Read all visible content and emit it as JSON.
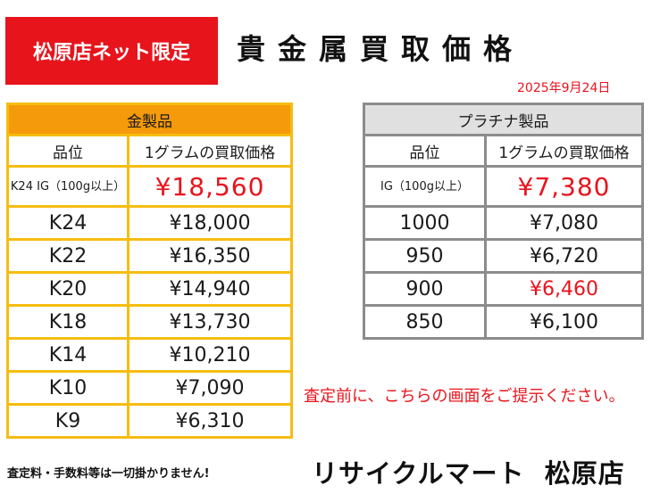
{
  "header": {
    "badge": "松原店ネット限定",
    "title": "貴金属買取価格",
    "date": "2025年9月24日"
  },
  "gold": {
    "caption": "金製品",
    "col_grade": "品位",
    "col_price": "1グラムの買取価格",
    "rows": [
      {
        "grade": "K24 IG（100g以上）",
        "price": "¥18,560"
      },
      {
        "grade": "K24",
        "price": "¥18,000"
      },
      {
        "grade": "K22",
        "price": "¥16,350"
      },
      {
        "grade": "K20",
        "price": "¥14,940"
      },
      {
        "grade": "K18",
        "price": "¥13,730"
      },
      {
        "grade": "K14",
        "price": "¥10,210"
      },
      {
        "grade": "K10",
        "price": "¥7,090"
      },
      {
        "grade": "K9",
        "price": "¥6,310"
      }
    ]
  },
  "platinum": {
    "caption": "プラチナ製品",
    "col_grade": "品位",
    "col_price": "1グラムの買取価格",
    "rows": [
      {
        "grade": "IG（100g以上）",
        "price": "¥7,380"
      },
      {
        "grade": "1000",
        "price": "¥7,080"
      },
      {
        "grade": "950",
        "price": "¥6,720"
      },
      {
        "grade": "900",
        "price": "¥6,460"
      },
      {
        "grade": "850",
        "price": "¥6,100"
      }
    ]
  },
  "notice": "査定前に、こちらの画面をご提示ください。",
  "footer": {
    "fees": "査定料・手数料等は一切掛かりません!",
    "shop": "リサイクルマート  松原店"
  },
  "colors": {
    "accent_red": "#e8141c",
    "gold_header": "#f59a0a",
    "gold_border": "#f5bd10",
    "platinum_header": "#e0e0e0",
    "platinum_border": "#8c8c8c"
  }
}
